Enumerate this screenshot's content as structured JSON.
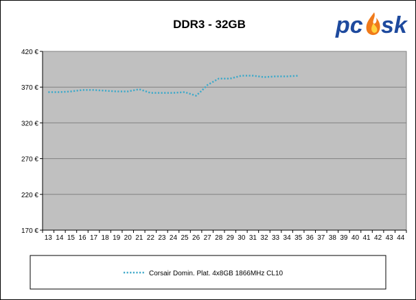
{
  "chart_data": {
    "type": "line",
    "title": "DDR3 - 32GB",
    "xlabel": "",
    "ylabel": "",
    "ylim": [
      170,
      420
    ],
    "yticks": [
      170,
      220,
      270,
      320,
      370,
      420
    ],
    "y_tick_suffix": " €",
    "x": [
      13,
      14,
      15,
      16,
      17,
      18,
      19,
      20,
      21,
      22,
      23,
      24,
      25,
      26,
      27,
      28,
      29,
      30,
      31,
      32,
      33,
      34,
      35,
      36,
      37,
      38,
      39,
      40,
      41,
      42,
      43,
      44
    ],
    "grid": "horizontal",
    "legend_position": "bottom",
    "series": [
      {
        "name": "Corsair Domin. Plat. 4x8GB 1866MHz CL10",
        "color": "#3FA9C9",
        "style": "dotted",
        "points": [
          [
            13,
            363
          ],
          [
            14,
            363
          ],
          [
            15,
            364
          ],
          [
            16,
            366
          ],
          [
            17,
            366
          ],
          [
            18,
            365
          ],
          [
            19,
            364
          ],
          [
            20,
            364
          ],
          [
            21,
            367
          ],
          [
            22,
            362
          ],
          [
            23,
            362
          ],
          [
            24,
            362
          ],
          [
            25,
            363
          ],
          [
            26,
            358
          ],
          [
            26.5,
            365
          ],
          [
            27,
            373
          ],
          [
            28,
            382
          ],
          [
            29,
            382
          ],
          [
            30,
            386
          ],
          [
            31,
            386
          ],
          [
            32,
            384
          ],
          [
            33,
            385
          ],
          [
            34,
            385
          ],
          [
            35,
            386
          ]
        ]
      }
    ]
  },
  "logo": {
    "text": "pcsk",
    "colors": {
      "main": "#1E4A9E",
      "flame": "#F07A1A",
      "flame_core": "#FFD23F"
    }
  },
  "colors": {
    "plot_bg": "#C0C0C0",
    "grid": "#808080",
    "axis": "#000000"
  }
}
